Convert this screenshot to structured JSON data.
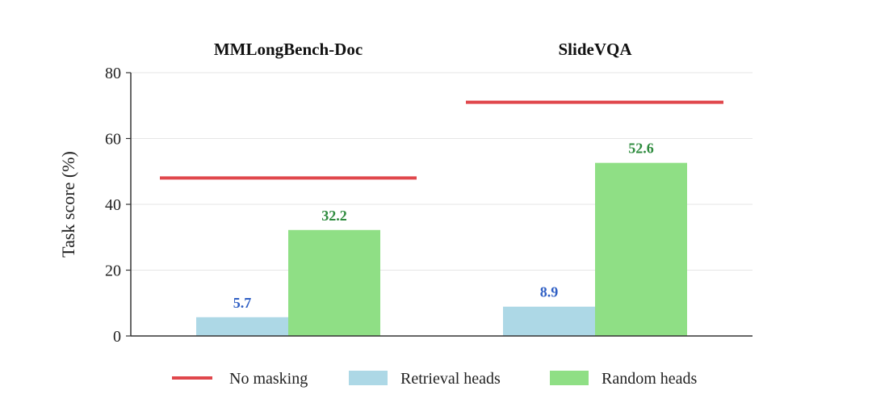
{
  "chart_data": {
    "type": "bar",
    "ylabel": "Task score (%)",
    "ylim": [
      0,
      80
    ],
    "yticks": [
      0,
      20,
      40,
      60,
      80
    ],
    "grid": true,
    "legend_position": "bottom",
    "panels": [
      {
        "title": "MMLongBench-Doc",
        "no_masking": 48,
        "values": {
          "retrieval": 5.7,
          "random": 32.2
        },
        "labels": {
          "retrieval": "5.7",
          "random": "32.2"
        }
      },
      {
        "title": "SlideVQA",
        "no_masking": 71,
        "values": {
          "retrieval": 8.9,
          "random": 52.6
        },
        "labels": {
          "retrieval": "8.9",
          "random": "52.6"
        }
      }
    ],
    "legend": {
      "no_masking": "No masking",
      "retrieval": "Retrieval heads",
      "random": "Random heads"
    },
    "colors": {
      "no_masking": "#e0474c",
      "retrieval": "#add8e6",
      "random": "#8fdf85",
      "retrieval_label": "#2f5fc4",
      "random_label": "#2e8b3e",
      "axis": "#333333",
      "grid": "#e6e6e6"
    }
  }
}
